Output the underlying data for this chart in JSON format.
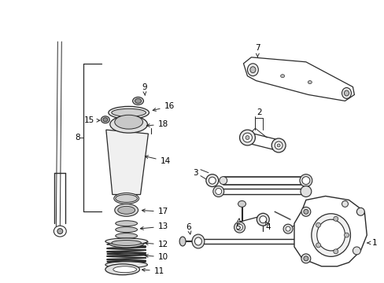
{
  "background_color": "#ffffff",
  "line_color": "#2a2a2a",
  "figsize": [
    4.89,
    3.6
  ],
  "dpi": 100,
  "text_color": "#000000"
}
